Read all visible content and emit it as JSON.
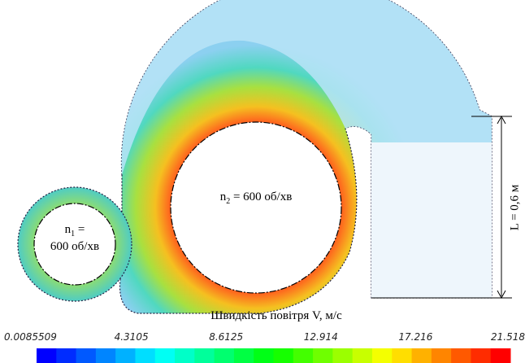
{
  "figure": {
    "rotor_small": {
      "symbol": "n",
      "index": "1",
      "equals": " =",
      "speed": "600 об/хв"
    },
    "rotor_large": {
      "symbol": "n",
      "index": "2",
      "rest": " = 600 об/хв"
    },
    "dimension": "L = 0,6 м",
    "colorbar": {
      "title": "Швидкість повітря V, м/с",
      "range": [
        0.0085509,
        21.518
      ],
      "ticks": [
        0.0085509,
        4.3105,
        8.6125,
        12.914,
        17.216,
        21.518
      ]
    }
  }
}
